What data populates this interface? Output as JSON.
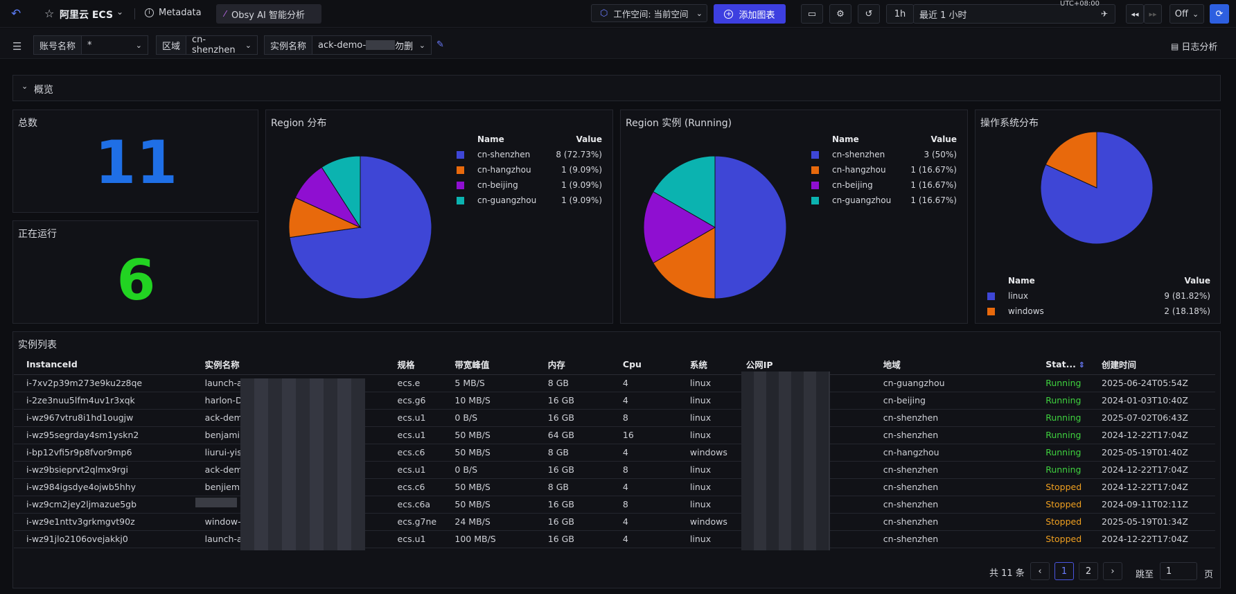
{
  "topbar": {
    "title": "阿里云 ECS",
    "metadata": "Metadata",
    "obsy": "Obsy AI 智能分析",
    "workspace": "工作空间: 当前空间",
    "add_chart": "添加图表",
    "range_short": "1h",
    "range_label": "最近 1 小时",
    "timezone": "UTC+08:00",
    "refresh": "Off"
  },
  "filters": {
    "account_label": "账号名称",
    "account_value": "*",
    "region_label": "区域",
    "region_value": "cn-shenzhen",
    "instance_label": "实例名称",
    "instance_value_a": "ack-demo-",
    "instance_value_b": "勿删",
    "log_analysis": "日志分析"
  },
  "overview": {
    "label": "概览"
  },
  "stats": {
    "total_label": "总数",
    "total_value": "11",
    "running_label": "正在运行",
    "running_value": "6"
  },
  "legend_headers": {
    "name": "Name",
    "value": "Value"
  },
  "colors": {
    "blue": "#3e46d6",
    "orange": "#e8690c",
    "purple": "#8f0fd1",
    "teal": "#0bb3b0",
    "running": "#3fd23f",
    "stopped": "#f0a020",
    "big_blue": "#1f6fe6",
    "big_green": "#22d322"
  },
  "chart_data": [
    {
      "type": "pie",
      "title": "Region 分布",
      "labels": [
        "cn-shenzhen",
        "cn-hangzhou",
        "cn-beijing",
        "cn-guangzhou"
      ],
      "values": [
        8,
        1,
        1,
        1
      ],
      "value_labels": [
        "8 (72.73%)",
        "1 (9.09%)",
        "1 (9.09%)",
        "1 (9.09%)"
      ],
      "colors": [
        "#3e46d6",
        "#e8690c",
        "#8f0fd1",
        "#0bb3b0"
      ]
    },
    {
      "type": "pie",
      "title": "Region 实例 (Running)",
      "labels": [
        "cn-shenzhen",
        "cn-hangzhou",
        "cn-beijing",
        "cn-guangzhou"
      ],
      "values": [
        3,
        1,
        1,
        1
      ],
      "value_labels": [
        "3 (50%)",
        "1 (16.67%)",
        "1 (16.67%)",
        "1 (16.67%)"
      ],
      "colors": [
        "#3e46d6",
        "#e8690c",
        "#8f0fd1",
        "#0bb3b0"
      ]
    },
    {
      "type": "pie",
      "title": "操作系统分布",
      "labels": [
        "linux",
        "windows"
      ],
      "values": [
        9,
        2
      ],
      "value_labels": [
        "9 (81.82%)",
        "2 (18.18%)"
      ],
      "colors": [
        "#3e46d6",
        "#e8690c"
      ]
    }
  ],
  "table": {
    "title": "实例列表",
    "columns": [
      "InstanceId",
      "实例名称",
      "规格",
      "带宽峰值",
      "内存",
      "Cpu",
      "系统",
      "公网IP",
      "地域",
      "Stat...",
      "创建时间"
    ],
    "rows": [
      [
        "i-7xv2p39m273e9ku2z8qe",
        "launch-ac",
        "ecs.e",
        "5 MB/S",
        "8 GB",
        "4",
        "linux",
        "",
        "cn-guangzhou",
        "Running",
        "2025-06-24T05:54Z"
      ],
      [
        "i-2ze3nuu5lfm4uv1r3xqk",
        "harlon-D",
        "ecs.g6",
        "10 MB/S",
        "16 GB",
        "4",
        "linux",
        "",
        "cn-beijing",
        "Running",
        "2024-01-03T10:40Z"
      ],
      [
        "i-wz967vtru8i1hd1ougjw",
        "ack-demc",
        "ecs.u1",
        "0 B/S",
        "16 GB",
        "8",
        "linux",
        "",
        "cn-shenzhen",
        "Running",
        "2025-07-02T06:43Z"
      ],
      [
        "i-wz95segrday4sm1yskn2",
        "benjamir",
        "ecs.u1",
        "50 MB/S",
        "64 GB",
        "16",
        "linux",
        "",
        "cn-shenzhen",
        "Running",
        "2024-12-22T17:04Z"
      ],
      [
        "i-bp12vfi5r9p8fvor9mp6",
        "liurui-yisl",
        "ecs.c6",
        "50 MB/S",
        "8 GB",
        "4",
        "windows",
        "",
        "cn-hangzhou",
        "Running",
        "2025-05-19T01:40Z"
      ],
      [
        "i-wz9bsieprvt2qlmx9rgi",
        "ack-demc",
        "ecs.u1",
        "0 B/S",
        "16 GB",
        "8",
        "linux",
        "",
        "cn-shenzhen",
        "Running",
        "2024-12-22T17:04Z"
      ],
      [
        "i-wz984igsdye4ojwb5hhy",
        "benjiemi",
        "ecs.c6",
        "50 MB/S",
        "8 GB",
        "4",
        "linux",
        "",
        "cn-shenzhen",
        "Stopped",
        "2024-12-22T17:04Z"
      ],
      [
        "i-wz9cm2jey2ljmazue5gb",
        "",
        "ecs.c6a",
        "50 MB/S",
        "16 GB",
        "8",
        "linux",
        "",
        "cn-shenzhen",
        "Stopped",
        "2024-09-11T02:11Z"
      ],
      [
        "i-wz9e1nttv3grkmgvt90z",
        "window-",
        "ecs.g7ne",
        "24 MB/S",
        "16 GB",
        "4",
        "windows",
        "",
        "cn-shenzhen",
        "Stopped",
        "2025-05-19T01:34Z"
      ],
      [
        "i-wz91jlo2106ovejakkj0",
        "launch-ac",
        "ecs.u1",
        "100 MB/S",
        "16 GB",
        "4",
        "linux",
        "",
        "cn-shenzhen",
        "Stopped",
        "2024-12-22T17:04Z"
      ]
    ]
  },
  "pagination": {
    "total": "共 11 条",
    "page1": "1",
    "page2": "2",
    "jump_label": "跳至",
    "jump_value": "1",
    "page_unit": "页",
    "prev": "‹",
    "next": "›"
  }
}
